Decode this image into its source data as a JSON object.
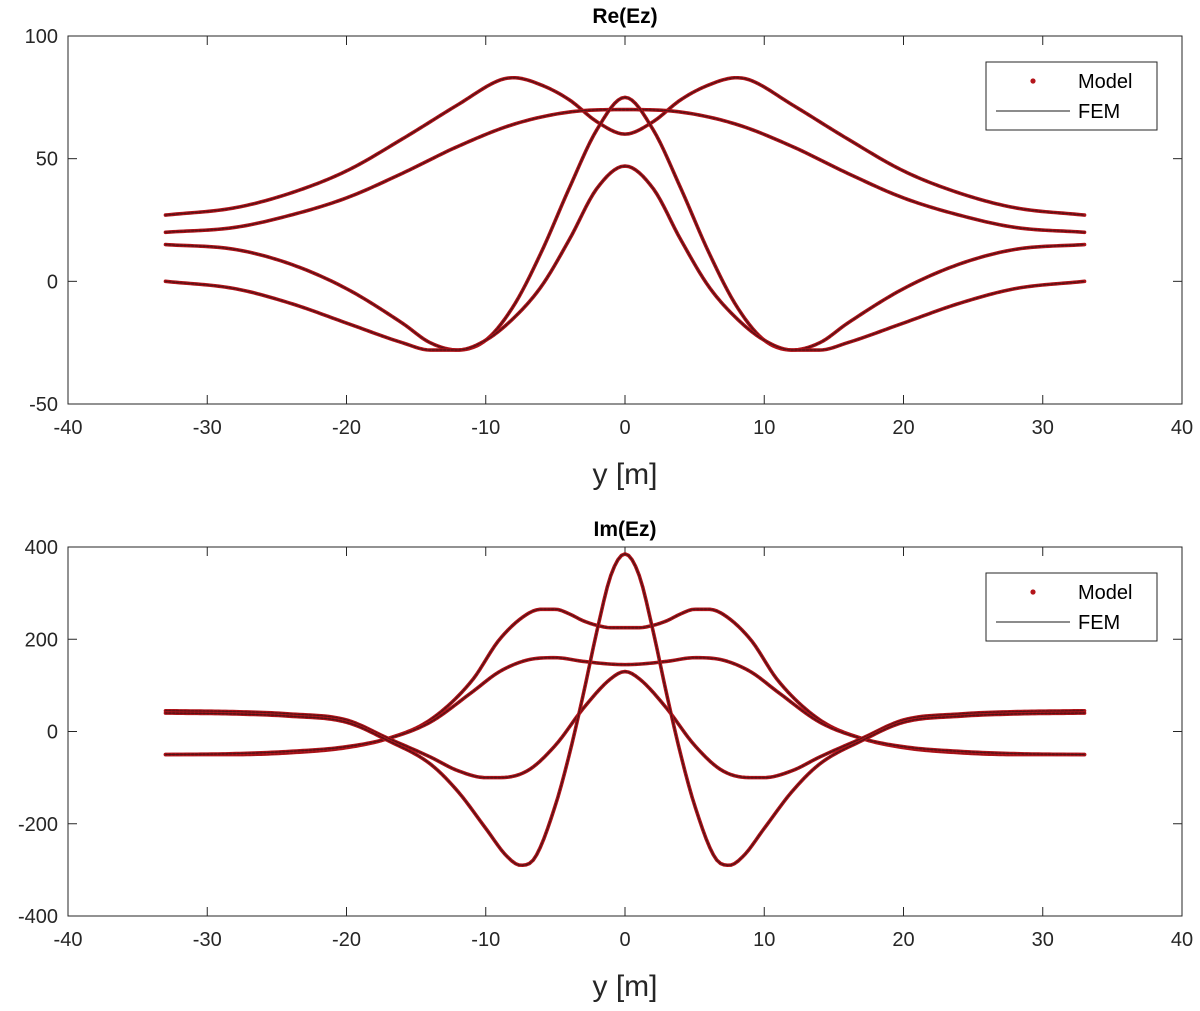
{
  "chart_data": [
    {
      "type": "line",
      "title": "Re(Ez)",
      "xlabel": "y [m]",
      "ylabel": "",
      "xlim": [
        -40,
        40
      ],
      "ylim": [
        -50,
        100
      ],
      "xticks": [
        -40,
        -30,
        -20,
        -10,
        0,
        10,
        20,
        30,
        40
      ],
      "yticks": [
        -50,
        0,
        50,
        100
      ],
      "grid": false,
      "legend_position": "top-right",
      "legend": [
        {
          "label": "Model",
          "marker": "dot"
        },
        {
          "label": "FEM",
          "marker": "line"
        }
      ],
      "colors": {
        "model": "#b3151b",
        "fem": "#1a1a1a"
      },
      "series": [
        {
          "x": [
            -33,
            -28,
            -24,
            -20,
            -16,
            -12,
            -9,
            -8,
            -6,
            -4,
            -2,
            0,
            2,
            4,
            6,
            8,
            9,
            12,
            16,
            20,
            24,
            28,
            33
          ],
          "values": [
            27,
            30,
            36,
            45,
            58,
            72,
            82,
            83,
            80,
            74,
            65,
            60,
            65,
            74,
            80,
            83,
            82,
            72,
            58,
            45,
            36,
            30,
            27
          ]
        },
        {
          "x": [
            -33,
            -28,
            -24,
            -20,
            -16,
            -12,
            -8,
            -4,
            0,
            4,
            8,
            12,
            16,
            20,
            24,
            28,
            33
          ],
          "values": [
            20,
            22,
            27,
            34,
            44,
            55,
            64,
            69,
            70,
            69,
            64,
            55,
            44,
            34,
            27,
            22,
            20
          ]
        },
        {
          "x": [
            -33,
            -28,
            -24,
            -20,
            -16,
            -14,
            -12,
            -10,
            -8,
            -6,
            -4,
            -2,
            0,
            2,
            4,
            6,
            8,
            10,
            12,
            14,
            16,
            20,
            24,
            28,
            33
          ],
          "values": [
            15,
            13,
            7,
            -3,
            -17,
            -25,
            -28,
            -24,
            -10,
            12,
            38,
            62,
            75,
            62,
            38,
            12,
            -10,
            -24,
            -28,
            -25,
            -17,
            -3,
            7,
            13,
            15
          ]
        },
        {
          "x": [
            -33,
            -28,
            -24,
            -20,
            -16,
            -14,
            -12,
            -10,
            -8,
            -6,
            -4,
            -2,
            0,
            2,
            4,
            6,
            8,
            10,
            12,
            14,
            16,
            20,
            24,
            28,
            33
          ],
          "values": [
            0,
            -3,
            -9,
            -17,
            -25,
            -28,
            -28,
            -24,
            -15,
            -2,
            17,
            38,
            47,
            38,
            17,
            -2,
            -15,
            -24,
            -28,
            -28,
            -25,
            -17,
            -9,
            -3,
            0
          ]
        }
      ]
    },
    {
      "type": "line",
      "title": "Im(Ez)",
      "xlabel": "y [m]",
      "ylabel": "",
      "xlim": [
        -40,
        40
      ],
      "ylim": [
        -400,
        400
      ],
      "xticks": [
        -40,
        -30,
        -20,
        -10,
        0,
        10,
        20,
        30,
        40
      ],
      "yticks": [
        -400,
        -200,
        0,
        200,
        400
      ],
      "grid": false,
      "legend_position": "top-right",
      "legend": [
        {
          "label": "Model",
          "marker": "dot"
        },
        {
          "label": "FEM",
          "marker": "line"
        }
      ],
      "colors": {
        "model": "#b3151b",
        "fem": "#1a1a1a"
      },
      "series": [
        {
          "x": [
            -33,
            -28,
            -24,
            -20,
            -17,
            -14,
            -11,
            -9,
            -7,
            -6,
            -5,
            -4,
            -3,
            -2,
            -1,
            0,
            1,
            2,
            3,
            4,
            5,
            6,
            7,
            9,
            11,
            14,
            17,
            20,
            24,
            28,
            33
          ],
          "values": [
            -50,
            -50,
            -46,
            -35,
            -15,
            25,
            110,
            200,
            255,
            265,
            265,
            255,
            240,
            230,
            225,
            225,
            225,
            230,
            240,
            255,
            265,
            265,
            255,
            200,
            110,
            25,
            -15,
            -35,
            -46,
            -50,
            -50
          ]
        },
        {
          "x": [
            -33,
            -28,
            -24,
            -20,
            -17,
            -14,
            -11,
            -9,
            -7,
            -5,
            -3,
            -1,
            0,
            1,
            3,
            5,
            7,
            9,
            11,
            14,
            17,
            20,
            24,
            28,
            33
          ],
          "values": [
            -50,
            -48,
            -43,
            -33,
            -15,
            20,
            85,
            130,
            155,
            160,
            152,
            146,
            145,
            146,
            152,
            160,
            155,
            130,
            85,
            20,
            -15,
            -33,
            -43,
            -48,
            -50
          ]
        },
        {
          "x": [
            -33,
            -28,
            -24,
            -20,
            -17,
            -14,
            -12,
            -10,
            -9,
            -7,
            -5,
            -3,
            -1,
            0,
            1,
            3,
            5,
            7,
            9,
            10,
            12,
            14,
            17,
            20,
            24,
            28,
            33
          ],
          "values": [
            45,
            43,
            38,
            25,
            -15,
            -55,
            -85,
            -100,
            -100,
            -85,
            -30,
            50,
            115,
            130,
            115,
            50,
            -30,
            -85,
            -100,
            -100,
            -85,
            -55,
            -15,
            25,
            38,
            43,
            45
          ]
        },
        {
          "x": [
            -33,
            -28,
            -24,
            -20,
            -17,
            -14,
            -12,
            -10,
            -8.5,
            -7.5,
            -6.5,
            -5,
            -4,
            -3,
            -2,
            -1,
            0,
            1,
            2,
            3,
            4,
            5,
            6.5,
            7.5,
            8.5,
            10,
            12,
            14,
            17,
            20,
            24,
            28,
            33
          ],
          "values": [
            40,
            38,
            33,
            20,
            -20,
            -70,
            -130,
            -210,
            -270,
            -290,
            -275,
            -160,
            -50,
            80,
            220,
            340,
            385,
            340,
            220,
            80,
            -50,
            -160,
            -275,
            -290,
            -270,
            -210,
            -130,
            -70,
            -20,
            20,
            33,
            38,
            40
          ]
        }
      ]
    }
  ]
}
